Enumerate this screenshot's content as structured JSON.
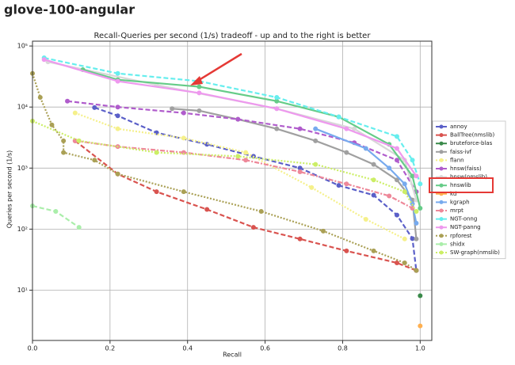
{
  "header": {
    "title": "glove-100-angular"
  },
  "chart_data": {
    "type": "line",
    "title": "Recall-Queries per second (1/s) tradeoff - up and to the right is better",
    "x_label": "Recall",
    "y_label": "Queries per second (1/s)",
    "xlim": [
      0,
      1.03
    ],
    "ylim": [
      1.5,
      120000
    ],
    "y_scale": "log",
    "grid": true,
    "legend": "right",
    "xticks": [
      {
        "value": 0,
        "label": "0.0"
      },
      {
        "value": 0.2,
        "label": "0.2"
      },
      {
        "value": 0.4,
        "label": "0.4"
      },
      {
        "value": 0.6,
        "label": "0.6"
      },
      {
        "value": 0.8,
        "label": "0.8"
      },
      {
        "value": 1,
        "label": "1.0"
      }
    ],
    "yticks": [
      {
        "value": 10,
        "label": "10¹"
      },
      {
        "value": 100,
        "label": "10²"
      },
      {
        "value": 1000,
        "label": "10³"
      },
      {
        "value": 10000,
        "label": "10⁴"
      },
      {
        "value": 100000,
        "label": "10⁵"
      }
    ],
    "series": [
      {
        "name": "annoy",
        "color": "#5a5fc8",
        "style": "dashed",
        "x": [
          0.16,
          0.22,
          0.32,
          0.45,
          0.57,
          0.69,
          0.79,
          0.88,
          0.94,
          0.98,
          0.99
        ],
        "values": [
          9800,
          7200,
          3800,
          2450,
          1560,
          1000,
          520,
          360,
          170,
          70,
          21
        ]
      },
      {
        "name": "BallTree(nmslib)",
        "color": "#d9534f",
        "style": "dashed",
        "x": [
          0.11,
          0.22,
          0.32,
          0.45,
          0.57,
          0.69,
          0.81,
          0.94,
          0.99
        ],
        "values": [
          2800,
          800,
          410,
          210,
          107,
          69,
          44,
          28,
          21
        ]
      },
      {
        "name": "bruteforce-blas",
        "color": "#3a8a4a",
        "style": "solid",
        "x": [
          1.0
        ],
        "values": [
          8.1
        ]
      },
      {
        "name": "faiss-ivf",
        "color": "#a0a0a0",
        "style": "solid",
        "x": [
          0.36,
          0.43,
          0.53,
          0.63,
          0.73,
          0.81,
          0.88,
          0.94,
          0.98,
          0.99
        ],
        "values": [
          9400,
          8700,
          6300,
          4400,
          2800,
          1800,
          1150,
          640,
          300,
          69
        ]
      },
      {
        "name": "flann",
        "color": "#f5f08a",
        "style": "dotted",
        "x": [
          0.11,
          0.22,
          0.39,
          0.55,
          0.72,
          0.86,
          0.96
        ],
        "values": [
          8000,
          4400,
          3100,
          1800,
          480,
          145,
          69
        ]
      },
      {
        "name": "hnsw(faiss)",
        "color": "#b05ccc",
        "style": "dashed",
        "x": [
          0.09,
          0.22,
          0.39,
          0.53,
          0.69,
          0.83,
          0.94,
          0.99
        ],
        "values": [
          12500,
          10000,
          8000,
          6300,
          4400,
          2600,
          1350,
          410
        ]
      },
      {
        "name": "hnsw(nmslib)",
        "color": "#d8d8d8",
        "style": "solid",
        "x": [
          0.04,
          0.32,
          0.63,
          0.83,
          0.96,
          0.99
        ],
        "values": [
          55000,
          23000,
          9400,
          4400,
          1350,
          300
        ]
      },
      {
        "name": "hnswlib",
        "color": "#66cc88",
        "style": "solid",
        "x": [
          0.13,
          0.22,
          0.43,
          0.63,
          0.79,
          0.92,
          0.98,
          1.0
        ],
        "values": [
          41000,
          28000,
          21500,
          12500,
          6900,
          2450,
          740,
          220
        ]
      },
      {
        "name": "kd",
        "color": "#ffb050",
        "style": "solid",
        "x": [
          1.0
        ],
        "values": [
          2.6
        ]
      },
      {
        "name": "kgraph",
        "color": "#77aaee",
        "style": "solid",
        "x": [
          0.73,
          0.86,
          0.92,
          0.96,
          0.98,
          0.99
        ],
        "values": [
          4400,
          2100,
          1000,
          550,
          260,
          125
        ]
      },
      {
        "name": "mrpt",
        "color": "#ee8899",
        "style": "dashdot",
        "x": [
          0.11,
          0.22,
          0.39,
          0.55,
          0.69,
          0.81,
          0.92,
          0.98
        ],
        "values": [
          2800,
          2250,
          1800,
          1350,
          870,
          550,
          350,
          220
        ]
      },
      {
        "name": "NGT-onng",
        "color": "#66eeee",
        "style": "dashed",
        "x": [
          0.03,
          0.22,
          0.43,
          0.63,
          0.79,
          0.94,
          0.98,
          1.0
        ],
        "values": [
          64000,
          35500,
          26500,
          14400,
          6900,
          3300,
          1350,
          550
        ]
      },
      {
        "name": "NGT-panng",
        "color": "#ee99ee",
        "style": "solid",
        "x": [
          0.03,
          0.22,
          0.43,
          0.63,
          0.81,
          0.94,
          0.99
        ],
        "values": [
          60000,
          26500,
          17000,
          9400,
          4400,
          2100,
          740
        ]
      },
      {
        "name": "rpforest",
        "color": "#aaa055",
        "style": "dotted",
        "x": [
          0.0,
          0.02,
          0.05,
          0.08,
          0.08,
          0.16,
          0.22,
          0.39,
          0.59,
          0.75,
          0.88,
          0.96,
          0.99
        ],
        "values": [
          35500,
          14400,
          5100,
          2800,
          1800,
          1350,
          800,
          410,
          195,
          93,
          44,
          28,
          21
        ]
      },
      {
        "name": "shidx",
        "color": "#aaeeaa",
        "style": "dashed",
        "x": [
          0.0,
          0.06,
          0.12
        ],
        "values": [
          240,
          195,
          107
        ]
      },
      {
        "name": "SW-graph(nmslib)",
        "color": "#ccee66",
        "style": "dotted",
        "x": [
          0.0,
          0.12,
          0.32,
          0.53,
          0.73,
          0.88,
          0.96,
          0.99
        ],
        "values": [
          5900,
          2800,
          1800,
          1560,
          1150,
          640,
          410,
          195
        ]
      }
    ]
  }
}
